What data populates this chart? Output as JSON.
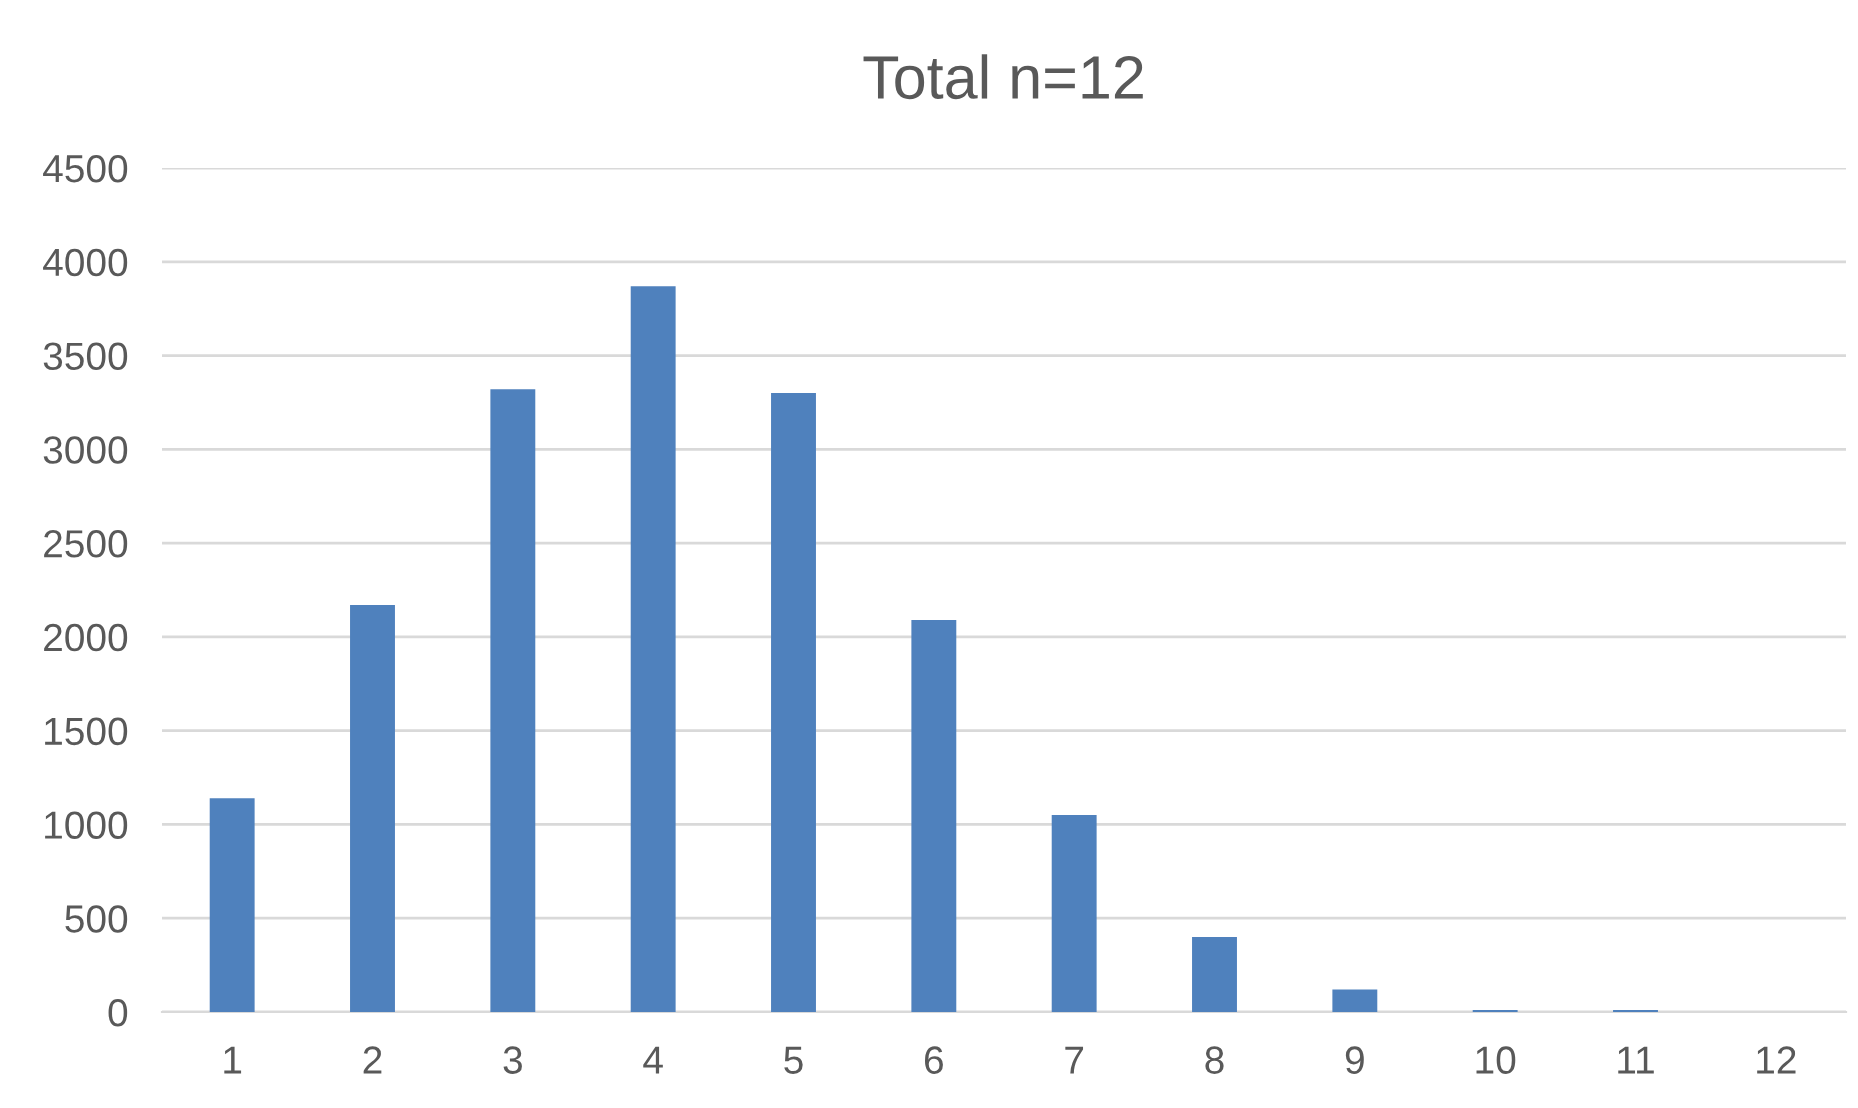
{
  "chart_data": {
    "type": "bar",
    "title": "Total n=12",
    "categories": [
      "1",
      "2",
      "3",
      "4",
      "5",
      "6",
      "7",
      "8",
      "9",
      "10",
      "11",
      "12"
    ],
    "values": [
      1140,
      2170,
      3320,
      3870,
      3300,
      2090,
      1050,
      400,
      120,
      10,
      10,
      0
    ],
    "color": "#4f81bd",
    "ylim": [
      0,
      4500
    ],
    "yticks": [
      0,
      500,
      1000,
      1500,
      2000,
      2500,
      3000,
      3500,
      4000,
      4500
    ],
    "grid": "y"
  }
}
